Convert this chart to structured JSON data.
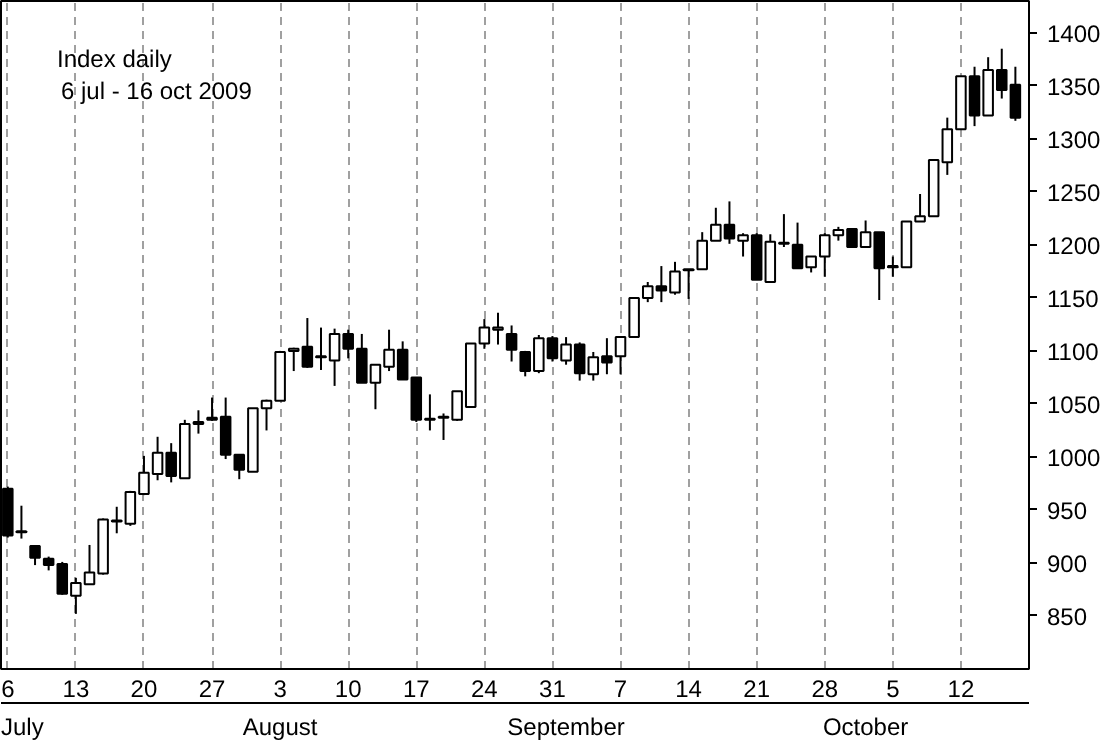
{
  "chart_data": {
    "type": "candlestick",
    "title": "Index daily",
    "subtitle": "6 jul - 16 oct 2009",
    "categories": [
      "6",
      null,
      null,
      null,
      null,
      "13",
      null,
      null,
      null,
      null,
      "20",
      null,
      null,
      null,
      null,
      "27",
      null,
      null,
      null,
      null,
      "3",
      null,
      null,
      null,
      null,
      "10",
      null,
      null,
      null,
      null,
      "17",
      null,
      null,
      null,
      null,
      "24",
      null,
      null,
      null,
      null,
      "31",
      null,
      null,
      null,
      null,
      "7",
      null,
      null,
      null,
      null,
      "14",
      null,
      null,
      null,
      null,
      "21",
      null,
      null,
      null,
      null,
      "28",
      null,
      null,
      null,
      null,
      "5",
      null,
      null,
      null,
      null,
      "12",
      null,
      null,
      null,
      null
    ],
    "ohlc": [
      [
        970,
        972,
        924,
        926
      ],
      [
        930,
        954,
        923,
        929
      ],
      [
        916,
        916,
        898,
        905
      ],
      [
        904,
        906,
        893,
        898
      ],
      [
        899,
        901,
        870,
        871
      ],
      [
        869,
        886,
        852,
        881
      ],
      [
        880,
        917,
        880,
        891
      ],
      [
        890,
        942,
        889,
        941
      ],
      [
        939,
        953,
        928,
        940
      ],
      [
        937,
        968,
        935,
        967
      ],
      [
        965,
        1001,
        964,
        985
      ],
      [
        984,
        1019,
        978,
        1004
      ],
      [
        1004,
        1013,
        976,
        982
      ],
      [
        980,
        1035,
        980,
        1031
      ],
      [
        1031,
        1044,
        1022,
        1033
      ],
      [
        1035,
        1056,
        1034,
        1037
      ],
      [
        1038,
        1056,
        998,
        1002
      ],
      [
        1002,
        1002,
        979,
        988
      ],
      [
        986,
        1046,
        986,
        1046
      ],
      [
        1046,
        1054,
        1025,
        1053
      ],
      [
        1053,
        1100,
        1053,
        1099
      ],
      [
        1100,
        1103,
        1081,
        1102
      ],
      [
        1104,
        1131,
        1084,
        1085
      ],
      [
        1095,
        1122,
        1082,
        1094
      ],
      [
        1091,
        1121,
        1067,
        1116
      ],
      [
        1116,
        1120,
        1093,
        1102
      ],
      [
        1102,
        1116,
        1070,
        1070
      ],
      [
        1070,
        1087,
        1045,
        1087
      ],
      [
        1085,
        1120,
        1081,
        1101
      ],
      [
        1101,
        1109,
        1073,
        1073
      ],
      [
        1075,
        1075,
        1033,
        1035
      ],
      [
        1036,
        1059,
        1025,
        1035
      ],
      [
        1037,
        1041,
        1016,
        1038
      ],
      [
        1035,
        1062,
        1034,
        1062
      ],
      [
        1047,
        1107,
        1047,
        1107
      ],
      [
        1107,
        1130,
        1102,
        1122
      ],
      [
        1120,
        1136,
        1106,
        1122
      ],
      [
        1116,
        1124,
        1090,
        1101
      ],
      [
        1099,
        1100,
        1076,
        1081
      ],
      [
        1081,
        1115,
        1079,
        1112
      ],
      [
        1112,
        1114,
        1090,
        1093
      ],
      [
        1091,
        1113,
        1087,
        1106
      ],
      [
        1106,
        1108,
        1072,
        1079
      ],
      [
        1078,
        1099,
        1072,
        1094
      ],
      [
        1095,
        1112,
        1078,
        1089
      ],
      [
        1095,
        1113,
        1078,
        1113
      ],
      [
        1113,
        1150,
        1113,
        1150
      ],
      [
        1150,
        1165,
        1146,
        1161
      ],
      [
        1161,
        1180,
        1146,
        1157
      ],
      [
        1155,
        1184,
        1153,
        1175
      ],
      [
        1176,
        1177,
        1149,
        1177
      ],
      [
        1177,
        1212,
        1177,
        1204
      ],
      [
        1204,
        1235,
        1204,
        1219
      ],
      [
        1219,
        1241,
        1201,
        1206
      ],
      [
        1204,
        1211,
        1189,
        1209
      ],
      [
        1209,
        1211,
        1167,
        1167
      ],
      [
        1165,
        1210,
        1165,
        1203
      ],
      [
        1202,
        1229,
        1198,
        1201
      ],
      [
        1200,
        1221,
        1178,
        1178
      ],
      [
        1179,
        1189,
        1174,
        1189
      ],
      [
        1189,
        1211,
        1170,
        1209
      ],
      [
        1209,
        1217,
        1204,
        1214
      ],
      [
        1215,
        1215,
        1198,
        1198
      ],
      [
        1198,
        1223,
        1198,
        1212
      ],
      [
        1212,
        1212,
        1148,
        1178
      ],
      [
        1180,
        1189,
        1170,
        1179
      ],
      [
        1179,
        1222,
        1179,
        1222
      ],
      [
        1222,
        1248,
        1222,
        1227
      ],
      [
        1227,
        1280,
        1227,
        1280
      ],
      [
        1278,
        1320,
        1266,
        1309
      ],
      [
        1309,
        1359,
        1309,
        1359
      ],
      [
        1359,
        1368,
        1312,
        1322
      ],
      [
        1322,
        1377,
        1322,
        1365
      ],
      [
        1365,
        1385,
        1338,
        1346
      ],
      [
        1351,
        1368,
        1317,
        1320
      ]
    ],
    "ylim": [
      800,
      1430
    ],
    "yticks": [
      850,
      900,
      950,
      1000,
      1050,
      1100,
      1150,
      1200,
      1250,
      1300,
      1350,
      1400
    ],
    "annotations": [
      "July",
      "August",
      "September",
      "October"
    ],
    "grid": "x"
  }
}
